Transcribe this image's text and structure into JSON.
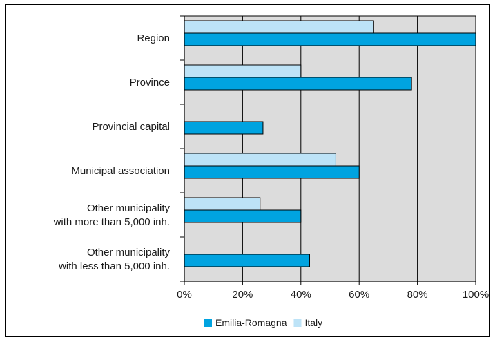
{
  "chart_data": {
    "type": "bar",
    "orientation": "horizontal",
    "title": "",
    "xlabel": "",
    "ylabel": "",
    "xlim": [
      0,
      100
    ],
    "x_ticks": [
      "0%",
      "20%",
      "40%",
      "60%",
      "80%",
      "100%"
    ],
    "grid": true,
    "legend_position": "bottom",
    "categories": [
      [
        "Region"
      ],
      [
        "Province"
      ],
      [
        "Provincial capital"
      ],
      [
        "Municipal association"
      ],
      [
        "Other municipality",
        "with more than 5,000 inh."
      ],
      [
        "Other municipality",
        "with less than 5,000 inh."
      ]
    ],
    "series": [
      {
        "name": "Italy",
        "color": "#bde3f7",
        "values": [
          65,
          40,
          null,
          52,
          26,
          null
        ]
      },
      {
        "name": "Emilia-Romagna",
        "color": "#00a3e0",
        "values": [
          100,
          78,
          27,
          60,
          40,
          43
        ]
      }
    ],
    "legend": [
      {
        "name": "Emilia-Romagna",
        "color": "#00a3e0"
      },
      {
        "name": "Italy",
        "color": "#bde3f7"
      }
    ],
    "plot_background": "#dcdcdc"
  }
}
